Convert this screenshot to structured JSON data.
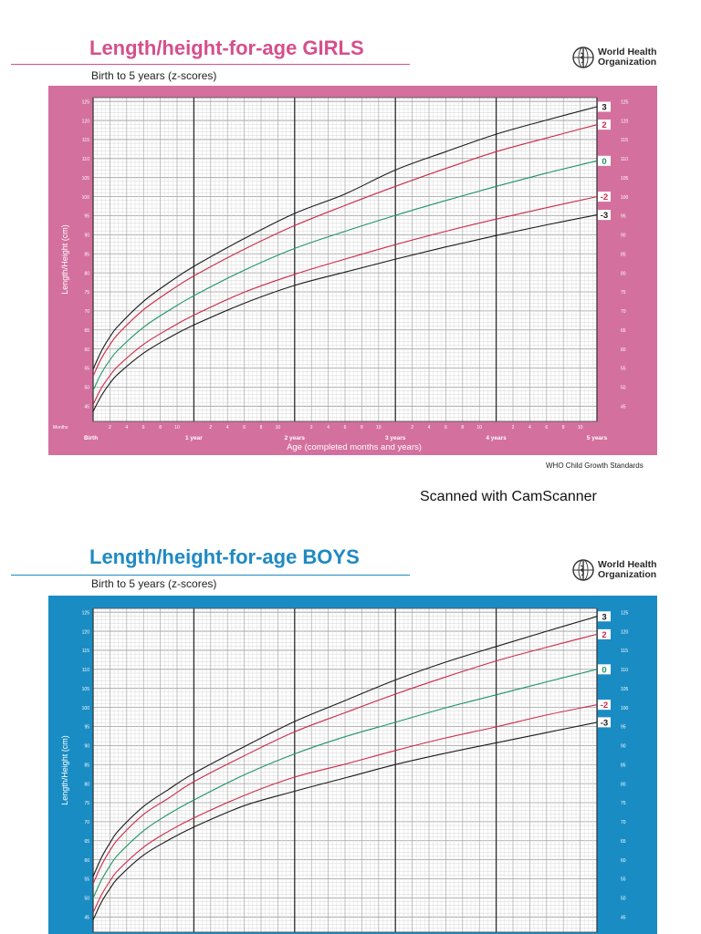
{
  "organization": {
    "name_line1": "World Health",
    "name_line2": "Organization",
    "emblem_icon": "who-emblem-icon"
  },
  "scan_note": "Scanned with CamScanner",
  "colors": {
    "girls_frame": "#d4709e",
    "boys_frame": "#1a8cc4",
    "girls_title": "#d54f8c",
    "boys_title": "#1f8ac2",
    "curve_3": "#1a1a1a",
    "curve_2": "#cc2a4a",
    "curve_0": "#1e9466",
    "curve_neg2": "#cc2a4a",
    "curve_neg3": "#1a1a1a"
  },
  "chart_data": [
    {
      "type": "line",
      "title": "Length/height-for-age GIRLS",
      "subtitle": "Birth to 5 years (z-scores)",
      "xlabel": "Age (completed months and years)",
      "ylabel": "Length/Height (cm)",
      "xlim": [
        0,
        60
      ],
      "ylim": [
        41,
        126
      ],
      "y_ticks": [
        45,
        50,
        55,
        60,
        65,
        70,
        75,
        80,
        85,
        90,
        95,
        100,
        105,
        110,
        115,
        120,
        125
      ],
      "x_minor_tick_labels": [
        "2",
        "4",
        "6",
        "8",
        "10"
      ],
      "x_year_labels": [
        "Birth",
        "1 year",
        "2 years",
        "3 years",
        "4 years",
        "5 years"
      ],
      "x_unit_label": "Months",
      "grid": true,
      "footer": "WHO Child Growth Standards",
      "x": [
        0,
        1,
        2,
        3,
        6,
        9,
        12,
        18,
        24,
        30,
        36,
        42,
        48,
        54,
        60
      ],
      "series": [
        {
          "name": "3",
          "color": "#1a1a1a",
          "values": [
            54.7,
            59.5,
            63.2,
            66.1,
            72.5,
            77.4,
            81.7,
            89.0,
            95.6,
            100.7,
            107.0,
            111.8,
            116.4,
            120.1,
            123.6
          ]
        },
        {
          "name": "2",
          "color": "#cc2a4a",
          "values": [
            52.9,
            57.6,
            61.1,
            64.0,
            70.3,
            75.0,
            79.2,
            86.2,
            92.4,
            97.7,
            102.7,
            107.4,
            111.8,
            115.4,
            118.9
          ]
        },
        {
          "name": "0",
          "color": "#1e9466",
          "values": [
            49.1,
            53.7,
            57.1,
            59.8,
            65.7,
            70.1,
            74.0,
            80.7,
            86.4,
            90.9,
            95.1,
            99.0,
            102.7,
            106.2,
            109.4
          ]
        },
        {
          "name": "-2",
          "color": "#cc2a4a",
          "values": [
            45.4,
            49.8,
            53.0,
            55.6,
            61.2,
            65.3,
            68.9,
            74.9,
            79.6,
            83.6,
            87.4,
            90.9,
            94.1,
            97.1,
            100.0
          ]
        },
        {
          "name": "-3",
          "color": "#1a1a1a",
          "values": [
            43.6,
            47.8,
            51.0,
            53.5,
            58.9,
            62.9,
            66.3,
            72.0,
            76.7,
            80.2,
            83.6,
            86.8,
            89.8,
            92.6,
            95.2
          ]
        }
      ]
    },
    {
      "type": "line",
      "title": "Length/height-for-age BOYS",
      "subtitle": "Birth to 5 years (z-scores)",
      "xlabel": "",
      "ylabel": "Length/Height (cm)",
      "xlim": [
        0,
        60
      ],
      "ylim": [
        41,
        126
      ],
      "y_ticks": [
        45,
        50,
        55,
        60,
        65,
        70,
        75,
        80,
        85,
        90,
        95,
        100,
        105,
        110,
        115,
        120,
        125
      ],
      "grid": true,
      "x": [
        0,
        1,
        2,
        3,
        6,
        9,
        12,
        18,
        24,
        30,
        36,
        42,
        48,
        54,
        60
      ],
      "series": [
        {
          "name": "3",
          "color": "#1a1a1a",
          "values": [
            55.6,
            60.6,
            64.4,
            67.6,
            74.0,
            78.5,
            82.7,
            89.7,
            96.3,
            101.8,
            107.2,
            111.9,
            116.0,
            120.0,
            123.9
          ]
        },
        {
          "name": "2",
          "color": "#cc2a4a",
          "values": [
            53.7,
            58.6,
            62.4,
            65.5,
            71.9,
            76.2,
            80.5,
            87.3,
            93.6,
            98.6,
            103.5,
            108.0,
            112.2,
            115.8,
            119.2
          ]
        },
        {
          "name": "0",
          "color": "#1e9466",
          "values": [
            49.9,
            54.7,
            58.4,
            61.4,
            67.6,
            72.0,
            75.7,
            82.3,
            87.8,
            92.3,
            96.1,
            99.9,
            103.3,
            106.7,
            110.0
          ]
        },
        {
          "name": "-2",
          "color": "#cc2a4a",
          "values": [
            46.1,
            50.8,
            54.4,
            57.3,
            63.3,
            67.5,
            71.0,
            76.9,
            81.7,
            85.1,
            88.7,
            92.0,
            94.9,
            98.0,
            100.7
          ]
        },
        {
          "name": "-3",
          "color": "#1a1a1a",
          "values": [
            44.2,
            48.9,
            52.4,
            55.3,
            61.2,
            65.2,
            68.6,
            74.2,
            78.0,
            81.5,
            85.0,
            88.0,
            90.7,
            93.4,
            96.1
          ]
        }
      ]
    }
  ]
}
